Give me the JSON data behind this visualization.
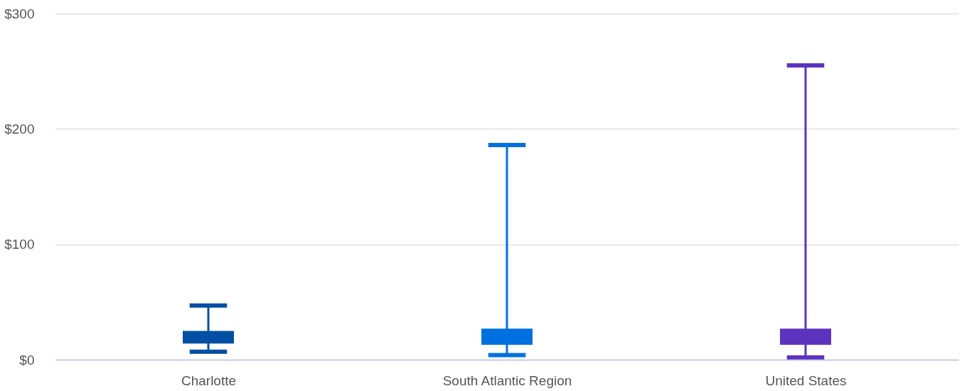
{
  "chart_data": {
    "type": "box",
    "categories": [
      "Charlotte",
      "South Atlantic Region",
      "United States"
    ],
    "series": [
      {
        "color": "#004fa3",
        "boxes": [
          {
            "low": 7,
            "q1": 14,
            "q3": 25,
            "high": 47
          },
          null,
          null
        ]
      },
      {
        "color": "#0070e0",
        "boxes": [
          null,
          {
            "low": 4,
            "q1": 13,
            "q3": 27,
            "high": 186
          },
          null
        ]
      },
      {
        "color": "#5c33bf",
        "boxes": [
          null,
          null,
          {
            "low": 2,
            "q1": 13,
            "q3": 27,
            "high": 255
          }
        ]
      }
    ],
    "ylim": [
      0,
      300
    ],
    "yticks": [
      {
        "value": 0,
        "label": "$0"
      },
      {
        "value": 100,
        "label": "$100"
      },
      {
        "value": 200,
        "label": "$200"
      },
      {
        "value": 300,
        "label": "$300"
      }
    ],
    "grid": "y"
  }
}
